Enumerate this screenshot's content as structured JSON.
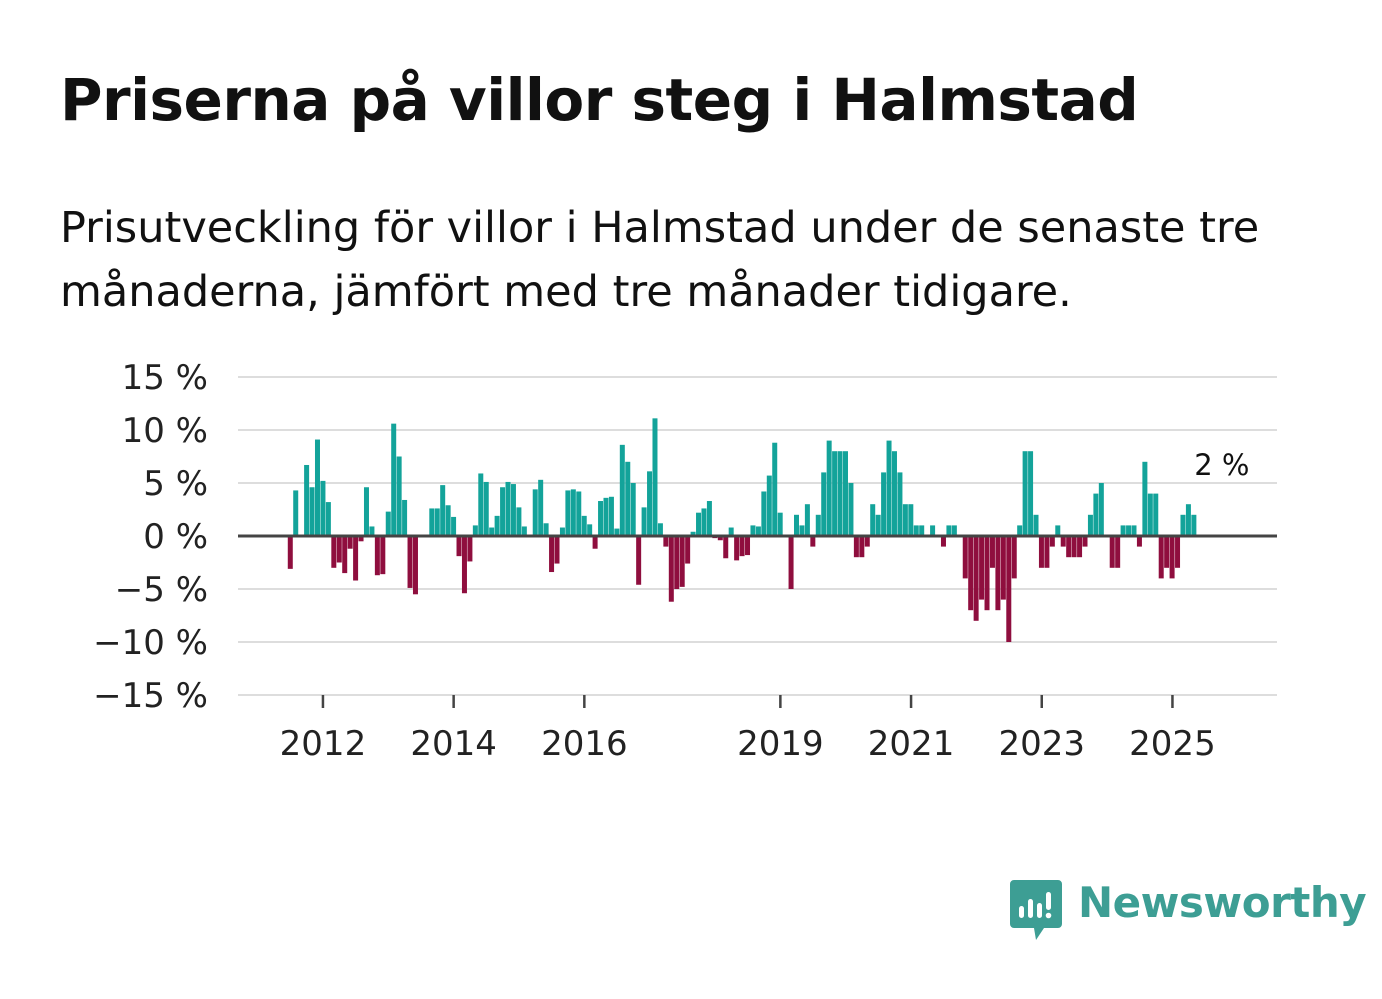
{
  "header": {
    "title": "Priserna på villor steg i Halmstad",
    "subtitle": "Prisutveckling för villor i Halmstad under de senaste tre månaderna, jämfört med tre månader tidigare."
  },
  "brand": {
    "name": "Newsworthy",
    "icon": "newsworthy-logo-icon",
    "color": "#3d9e94"
  },
  "colors": {
    "positive": "#13a39a",
    "negative": "#8f0e3e",
    "grid": "#dddddd",
    "zero_line": "#444444"
  },
  "chart_data": {
    "type": "bar",
    "ylabel": "",
    "xlabel": "",
    "ylim": [
      -15,
      15
    ],
    "yticks": [
      15,
      10,
      5,
      0,
      -5,
      -10,
      -15
    ],
    "ytick_labels": [
      "15 %",
      "10 %",
      "5 %",
      "0 %",
      "−5 %",
      "−10 %",
      "−15 %"
    ],
    "grid": true,
    "x_start": 2011.5,
    "x_step": 0.0833,
    "xlim": [
      2010.7,
      2026.6
    ],
    "xticks": [
      2012,
      2014,
      2016,
      2019,
      2021,
      2023,
      2025
    ],
    "xtick_labels": [
      "2012",
      "2014",
      "2016",
      "2019",
      "2021",
      "2023",
      "2025"
    ],
    "annotation": {
      "label": "2 %",
      "value": 2
    },
    "values": [
      -3.1,
      4.3,
      0,
      6.7,
      4.6,
      9.1,
      5.2,
      3.2,
      -3.0,
      -2.5,
      -3.5,
      -1.2,
      -4.2,
      -0.5,
      4.6,
      0.9,
      -3.7,
      -3.6,
      2.3,
      10.6,
      7.5,
      3.4,
      -4.9,
      -5.5,
      0,
      0,
      2.6,
      2.6,
      4.8,
      2.9,
      1.8,
      -1.9,
      -5.4,
      -2.4,
      1.0,
      5.9,
      5.1,
      0.8,
      1.9,
      4.6,
      5.1,
      4.9,
      2.7,
      0.9,
      0,
      4.4,
      5.3,
      1.2,
      -3.4,
      -2.6,
      0.8,
      4.3,
      4.4,
      4.2,
      1.9,
      1.1,
      -1.2,
      3.3,
      3.6,
      3.7,
      0.7,
      8.6,
      7.0,
      5.0,
      -4.6,
      2.7,
      6.1,
      11.1,
      1.2,
      -1.0,
      -6.2,
      -5.0,
      -4.8,
      -2.6,
      0.4,
      2.2,
      2.6,
      3.3,
      -0.2,
      -0.4,
      -2.1,
      0.8,
      -2.3,
      -1.9,
      -1.8,
      1.0,
      0.9,
      4.2,
      5.7,
      8.8,
      2.2,
      0,
      -5.0,
      2.0,
      1.0,
      3.0,
      -1.0,
      2.0,
      6.0,
      9.0,
      8.0,
      8.0,
      8.0,
      5.0,
      -2.0,
      -2.0,
      -1.0,
      3.0,
      2.0,
      6.0,
      9.0,
      8.0,
      6.0,
      3.0,
      3.0,
      1.0,
      1.0,
      0,
      1.0,
      0,
      -1.0,
      1.0,
      1.0,
      0,
      -4.0,
      -7.0,
      -8.0,
      -6.0,
      -7.0,
      -3.0,
      -7.0,
      -6.0,
      -10.0,
      -4.0,
      1.0,
      8.0,
      8.0,
      2.0,
      -3.0,
      -3.0,
      -1.0,
      1.0,
      -1.0,
      -2.0,
      -2.0,
      -2.0,
      -1.0,
      2.0,
      4.0,
      5.0,
      0,
      -3.0,
      -3.0,
      1.0,
      1.0,
      1.0,
      -1.0,
      7.0,
      4.0,
      4.0,
      -4.0,
      -3.0,
      -4.0,
      -3.0,
      2.0,
      3.0,
      2.0
    ]
  }
}
